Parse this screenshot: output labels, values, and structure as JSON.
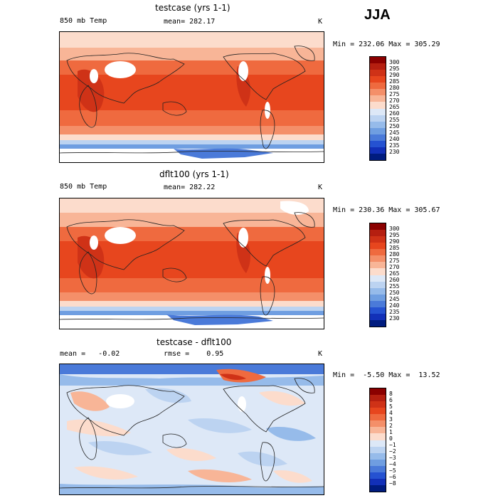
{
  "season": "JJA",
  "panels": [
    {
      "title": "testcase (yrs 1-1)",
      "left_label": "850 mb Temp",
      "center_label": "mean= 282.17",
      "unit": "K",
      "minmax": "Min = 232.06 Max = 305.29",
      "levels": [
        "300",
        "295",
        "290",
        "285",
        "280",
        "275",
        "270",
        "265",
        "260",
        "255",
        "250",
        "245",
        "240",
        "235",
        "230"
      ],
      "colors": [
        "#8b0000",
        "#b51f10",
        "#cf3217",
        "#e7461e",
        "#ef6a3f",
        "#f48f69",
        "#f8b597",
        "#fcdccc",
        "#dde8f7",
        "#bcd3f1",
        "#96bbea",
        "#6f9ee1",
        "#4a7ad9",
        "#2552d1",
        "#1230b8",
        "#001c7f"
      ]
    },
    {
      "title": "dflt100 (yrs 1-1)",
      "left_label": "850 mb Temp",
      "center_label": "mean= 282.22",
      "unit": "K",
      "minmax": "Min = 230.36 Max = 305.67",
      "levels": [
        "300",
        "295",
        "290",
        "285",
        "280",
        "275",
        "270",
        "265",
        "260",
        "255",
        "250",
        "245",
        "240",
        "235",
        "230"
      ],
      "colors": [
        "#8b0000",
        "#b51f10",
        "#cf3217",
        "#e7461e",
        "#ef6a3f",
        "#f48f69",
        "#f8b597",
        "#fcdccc",
        "#dde8f7",
        "#bcd3f1",
        "#96bbea",
        "#6f9ee1",
        "#4a7ad9",
        "#2552d1",
        "#1230b8",
        "#001c7f"
      ]
    },
    {
      "title": "testcase - dflt100",
      "left_label": "mean =   -0.02",
      "center_label": "rmse =    0.95",
      "unit": "K",
      "minmax": "Min =  -5.50 Max =  13.52",
      "levels": [
        "8",
        "6",
        "5",
        "4",
        "3",
        "2",
        "1",
        "0",
        "−1",
        "−2",
        "−3",
        "−4",
        "−5",
        "−6",
        "−8"
      ],
      "colors": [
        "#8b0000",
        "#b51f10",
        "#cf3217",
        "#e7461e",
        "#ef6a3f",
        "#f48f69",
        "#f8b597",
        "#fcdccc",
        "#dde8f7",
        "#bcd3f1",
        "#96bbea",
        "#6f9ee1",
        "#4a7ad9",
        "#2552d1",
        "#1230b8",
        "#001c7f"
      ]
    }
  ]
}
